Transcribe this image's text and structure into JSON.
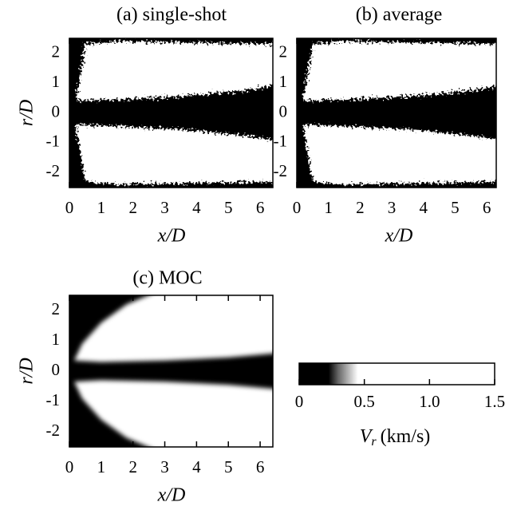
{
  "chart_data": [
    {
      "type": "heatmap",
      "title": "(a) single-shot",
      "xlabel": "x/D",
      "ylabel": "r/D",
      "xlim": [
        0,
        6.4
      ],
      "ylim": [
        -2.5,
        2.5
      ],
      "xticks": [
        0,
        1,
        2,
        3,
        4,
        5,
        6
      ],
      "yticks": [
        -2,
        -1,
        0,
        1,
        2
      ]
    },
    {
      "type": "heatmap",
      "title": "(b) average",
      "xlabel": "x/D",
      "xlim": [
        0,
        6.3
      ],
      "ylim": [
        -2.5,
        2.5
      ],
      "xticks": [
        0,
        1,
        2,
        3,
        4,
        5,
        6
      ],
      "yticks": [
        -2,
        -1,
        0,
        1,
        2
      ]
    },
    {
      "type": "heatmap",
      "title": "(c) MOC",
      "xlabel": "x/D",
      "ylabel": "r/D",
      "xlim": [
        0,
        6.4
      ],
      "ylim": [
        -2.5,
        2.5
      ],
      "xticks": [
        0,
        1,
        2,
        3,
        4,
        5,
        6
      ],
      "yticks": [
        -2,
        -1,
        0,
        1,
        2
      ]
    },
    {
      "type": "colorbar",
      "label_symbol": "V",
      "label_subscript": "r",
      "label_unit": "(km/s)",
      "xlim": [
        0,
        1.5
      ],
      "xticks": [
        0,
        0.5,
        {
          "value": 1,
          "label": "1.0"
        },
        1.5
      ]
    }
  ]
}
